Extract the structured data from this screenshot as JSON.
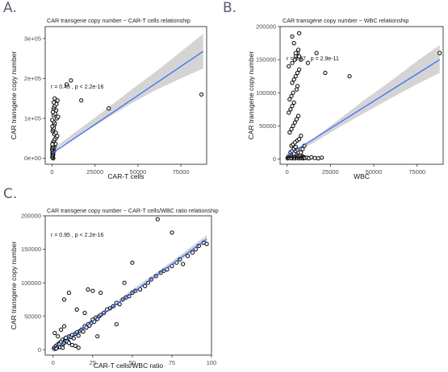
{
  "figure": {
    "panel_letters": [
      "A.",
      "B.",
      "C."
    ]
  },
  "chart_data": [
    {
      "type": "scatter",
      "panel": "A.",
      "title": "CAR transgene copy number ~ CAR-T cells relationship",
      "xlabel": "CAR-T cells",
      "ylabel": "CAR transgene copy number",
      "xlim": [
        -4000,
        90000
      ],
      "ylim": [
        -15000,
        330000
      ],
      "xticks": [
        0,
        25000,
        50000,
        75000
      ],
      "xtick_labels": [
        "0",
        "25000",
        "50000",
        "75000"
      ],
      "yticks": [
        0,
        100000,
        200000,
        300000
      ],
      "ytick_labels": [
        "0e+00",
        "1e+05",
        "2e+05",
        "3e+05"
      ],
      "annotation": "r = 0.43 , p < 2.2e-16",
      "grid": false,
      "regression": {
        "x": [
          0,
          88000
        ],
        "y": [
          12000,
          268000
        ]
      },
      "confidence_band": {
        "x": [
          0,
          5000,
          15000,
          30000,
          45000,
          60000,
          75000,
          88000
        ],
        "lower": [
          3000,
          30000,
          55000,
          95000,
          135000,
          170000,
          200000,
          225000
        ],
        "upper": [
          20000,
          38000,
          70000,
          118000,
          168000,
          216000,
          267000,
          312000
        ]
      },
      "points": {
        "x": [
          700,
          400,
          350,
          650,
          250,
          500,
          800,
          300,
          900,
          1200,
          450,
          1500,
          2000,
          600,
          1100,
          1700,
          2500,
          3000,
          1300,
          2200,
          300,
          700,
          1000,
          200,
          1400,
          1600,
          800,
          100,
          150,
          250,
          350,
          500,
          600,
          900,
          120,
          80,
          200,
          300,
          400,
          180,
          2800,
          3500,
          900,
          1800,
          500,
          2400,
          900,
          1200,
          1700,
          2600,
          1000,
          3200,
          1500,
          8500,
          11000,
          17000,
          33000,
          87000
        ],
        "y": [
          0,
          3000,
          6000,
          9000,
          12000,
          15000,
          18000,
          21000,
          24000,
          27000,
          30000,
          33000,
          36000,
          40000,
          44000,
          48000,
          52000,
          56000,
          60000,
          64000,
          68000,
          72000,
          76000,
          80000,
          84000,
          88000,
          92000,
          96000,
          2000,
          5000,
          8000,
          11000,
          14000,
          17000,
          20000,
          23000,
          26000,
          29000,
          32000,
          35000,
          100000,
          104000,
          108000,
          112000,
          116000,
          120000,
          124000,
          128000,
          132000,
          136000,
          140000,
          145000,
          150000,
          185000,
          195000,
          145000,
          125000,
          160000
        ]
      }
    },
    {
      "type": "scatter",
      "panel": "B.",
      "title": "CAR transgene copy number ~ WBC relationship",
      "xlabel": "WBC",
      "ylabel": "CAR transgene copy number",
      "xlim": [
        -4000,
        90000
      ],
      "ylim": [
        -8000,
        200000
      ],
      "xticks": [
        0,
        25000,
        50000,
        75000
      ],
      "xtick_labels": [
        "0",
        "25000",
        "50000",
        "75000"
      ],
      "yticks": [
        0,
        50000,
        100000,
        150000,
        200000
      ],
      "ytick_labels": [
        "0",
        "50000",
        "100000",
        "150000",
        "200000"
      ],
      "annotation": "r = 0.27 , p = 2.9e-11",
      "grid": false,
      "regression": {
        "x": [
          0,
          88000
        ],
        "y": [
          5000,
          150000
        ]
      },
      "confidence_band": {
        "x": [
          0,
          5000,
          15000,
          30000,
          45000,
          60000,
          75000,
          88000
        ],
        "lower": [
          1000,
          10000,
          24000,
          48000,
          70000,
          92000,
          113000,
          130000
        ],
        "upper": [
          9000,
          15000,
          30000,
          60000,
          90000,
          118000,
          148000,
          172000
        ]
      },
      "points": {
        "x": [
          300,
          600,
          900,
          1200,
          1500,
          1800,
          2100,
          2400,
          2700,
          3000,
          3300,
          3600,
          3900,
          4200,
          4500,
          4800,
          5100,
          5400,
          5700,
          6000,
          6300,
          6600,
          6900,
          7200,
          7500,
          7800,
          8100,
          8400,
          8700,
          9000,
          9300,
          9600,
          9900,
          10500,
          11500,
          12500,
          14000,
          16000,
          18000,
          20000,
          2000,
          3000,
          4000,
          5000,
          2500,
          3500,
          4500,
          6000,
          7000,
          8000,
          1500,
          2500,
          3500,
          4500,
          5500,
          6500,
          1000,
          2000,
          3000,
          4000,
          1500,
          2500,
          3500,
          5500,
          6000,
          3000,
          4000,
          5000,
          6000,
          7000,
          1000,
          3000,
          4500,
          5000,
          6000,
          6500,
          7000,
          3000,
          4000,
          8000,
          9000,
          10000,
          4000,
          5000,
          6000,
          5000,
          7000,
          8000,
          12000,
          17000,
          22000,
          36000,
          88000
        ],
        "y": [
          1000,
          3000,
          2000,
          4000,
          1500,
          3500,
          5000,
          2500,
          1000,
          4500,
          6000,
          2000,
          3000,
          5000,
          1000,
          4000,
          7000,
          2000,
          3000,
          1500,
          5000,
          2500,
          4000,
          1000,
          3000,
          6000,
          2000,
          1500,
          4000,
          2500,
          1000,
          3000,
          2000,
          1500,
          2000,
          1000,
          2500,
          1500,
          1000,
          2000,
          10000,
          12000,
          15000,
          18000,
          20000,
          22000,
          25000,
          28000,
          30000,
          35000,
          40000,
          45000,
          50000,
          55000,
          60000,
          65000,
          70000,
          75000,
          80000,
          85000,
          90000,
          95000,
          100000,
          105000,
          110000,
          115000,
          120000,
          125000,
          130000,
          135000,
          140000,
          145000,
          150000,
          155000,
          160000,
          165000,
          190000,
          185000,
          175000,
          10000,
          15000,
          20000,
          8000,
          12000,
          14000,
          160000,
          155000,
          150000,
          145000,
          160000,
          130000,
          125000,
          160000
        ]
      }
    },
    {
      "type": "scatter",
      "panel": "C.",
      "title": "CAR transgene copy number ~ CAR-T cells/WBC ratio relationship",
      "xlabel": "CAR-T cells/WBC ratio",
      "ylabel": "CAR transgene copy number",
      "xlim": [
        -5,
        100
      ],
      "ylim": [
        -8000,
        200000
      ],
      "xticks": [
        0,
        25,
        50,
        75,
        100
      ],
      "xtick_labels": [
        "0",
        "25",
        "50",
        "75",
        "100"
      ],
      "yticks": [
        0,
        50000,
        100000,
        150000,
        200000
      ],
      "ytick_labels": [
        "0",
        "50000",
        "100000",
        "150000",
        "200000"
      ],
      "annotation": "r = 0.95 , p < 2.2e-16",
      "grid": false,
      "regression": {
        "x": [
          0,
          97
        ],
        "y": [
          0,
          165000
        ]
      },
      "confidence_band": {
        "x": [
          0,
          25,
          50,
          75,
          97
        ],
        "lower": [
          -4000,
          39000,
          83000,
          125000,
          160000
        ],
        "upper": [
          4000,
          46000,
          90000,
          132000,
          171000
        ]
      },
      "points": {
        "x": [
          0.5,
          1,
          1.5,
          2,
          2.5,
          3,
          3.5,
          4,
          4.5,
          5,
          5.5,
          6,
          6.5,
          7,
          7.5,
          8,
          8.5,
          9,
          9.5,
          10,
          11,
          12,
          13,
          14,
          15,
          16,
          17,
          18,
          19,
          20,
          21,
          22,
          23,
          24,
          25,
          26,
          27,
          28,
          29,
          30,
          32,
          34,
          36,
          38,
          40,
          42,
          44,
          46,
          48,
          50,
          52,
          55,
          58,
          60,
          62,
          65,
          68,
          70,
          72,
          75,
          78,
          80,
          82,
          85,
          88,
          90,
          92,
          95,
          97,
          1,
          3,
          5,
          7,
          9,
          2,
          4,
          6,
          8,
          10,
          12,
          14,
          16,
          20,
          22,
          25,
          30,
          45,
          50,
          66,
          75,
          7,
          10,
          15,
          28,
          40
        ],
        "y": [
          2000,
          4000,
          1500,
          6000,
          3000,
          8000,
          5000,
          10000,
          4000,
          12000,
          7000,
          15000,
          9000,
          11000,
          14000,
          13000,
          16000,
          18000,
          12000,
          20000,
          19000,
          22000,
          17000,
          24000,
          26000,
          21000,
          28000,
          30000,
          27000,
          35000,
          33000,
          38000,
          36000,
          40000,
          45000,
          42000,
          48000,
          46000,
          50000,
          52000,
          55000,
          60000,
          62000,
          65000,
          70000,
          68000,
          75000,
          78000,
          80000,
          85000,
          88000,
          90000,
          95000,
          100000,
          105000,
          110000,
          115000,
          118000,
          120000,
          125000,
          130000,
          135000,
          128000,
          140000,
          145000,
          150000,
          155000,
          160000,
          158000,
          25000,
          20000,
          30000,
          35000,
          12000,
          2000,
          8000,
          3000,
          18000,
          10000,
          7000,
          6000,
          3000,
          55000,
          90000,
          88000,
          85000,
          100000,
          130000,
          195000,
          175000,
          75000,
          85000,
          60000,
          20000,
          38000
        ]
      }
    }
  ]
}
